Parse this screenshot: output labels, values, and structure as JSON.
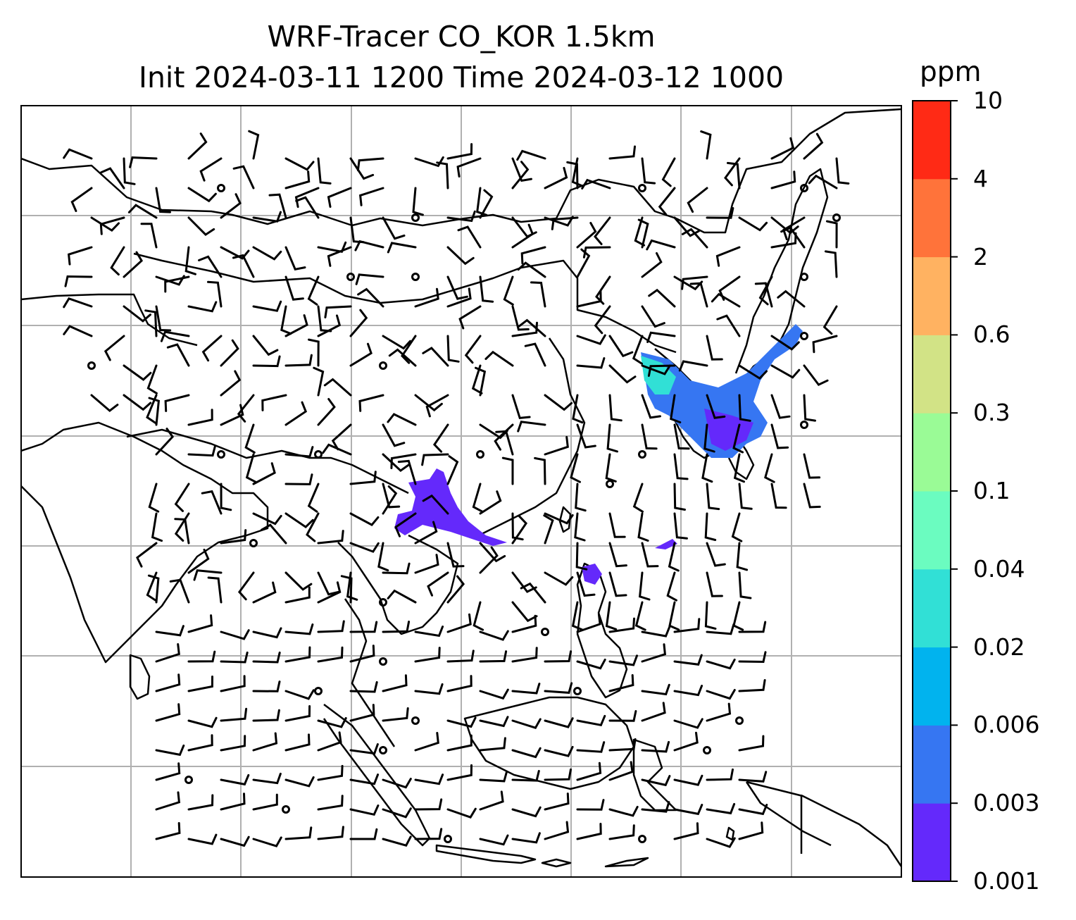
{
  "title_line1": "WRF-Tracer CO_KOR 1.5km",
  "title_line2": "Init 2024-03-11 1200 Time 2024-03-12 1000",
  "colorbar": {
    "unit": "ppm",
    "levels": [
      "0.001",
      "0.003",
      "0.006",
      "0.02",
      "0.04",
      "0.1",
      "0.3",
      "0.6",
      "2",
      "4",
      "10"
    ],
    "colors": [
      "#6429fb",
      "#3676f2",
      "#01b3ee",
      "#31e0d6",
      "#6bfcc0",
      "#9afb96",
      "#d2e386",
      "#ffb261",
      "#ff733a",
      "#ff2a15"
    ]
  },
  "map": {
    "gridlines": true,
    "grid_color": "#b0b0b0",
    "coastline_color": "#000000"
  }
}
